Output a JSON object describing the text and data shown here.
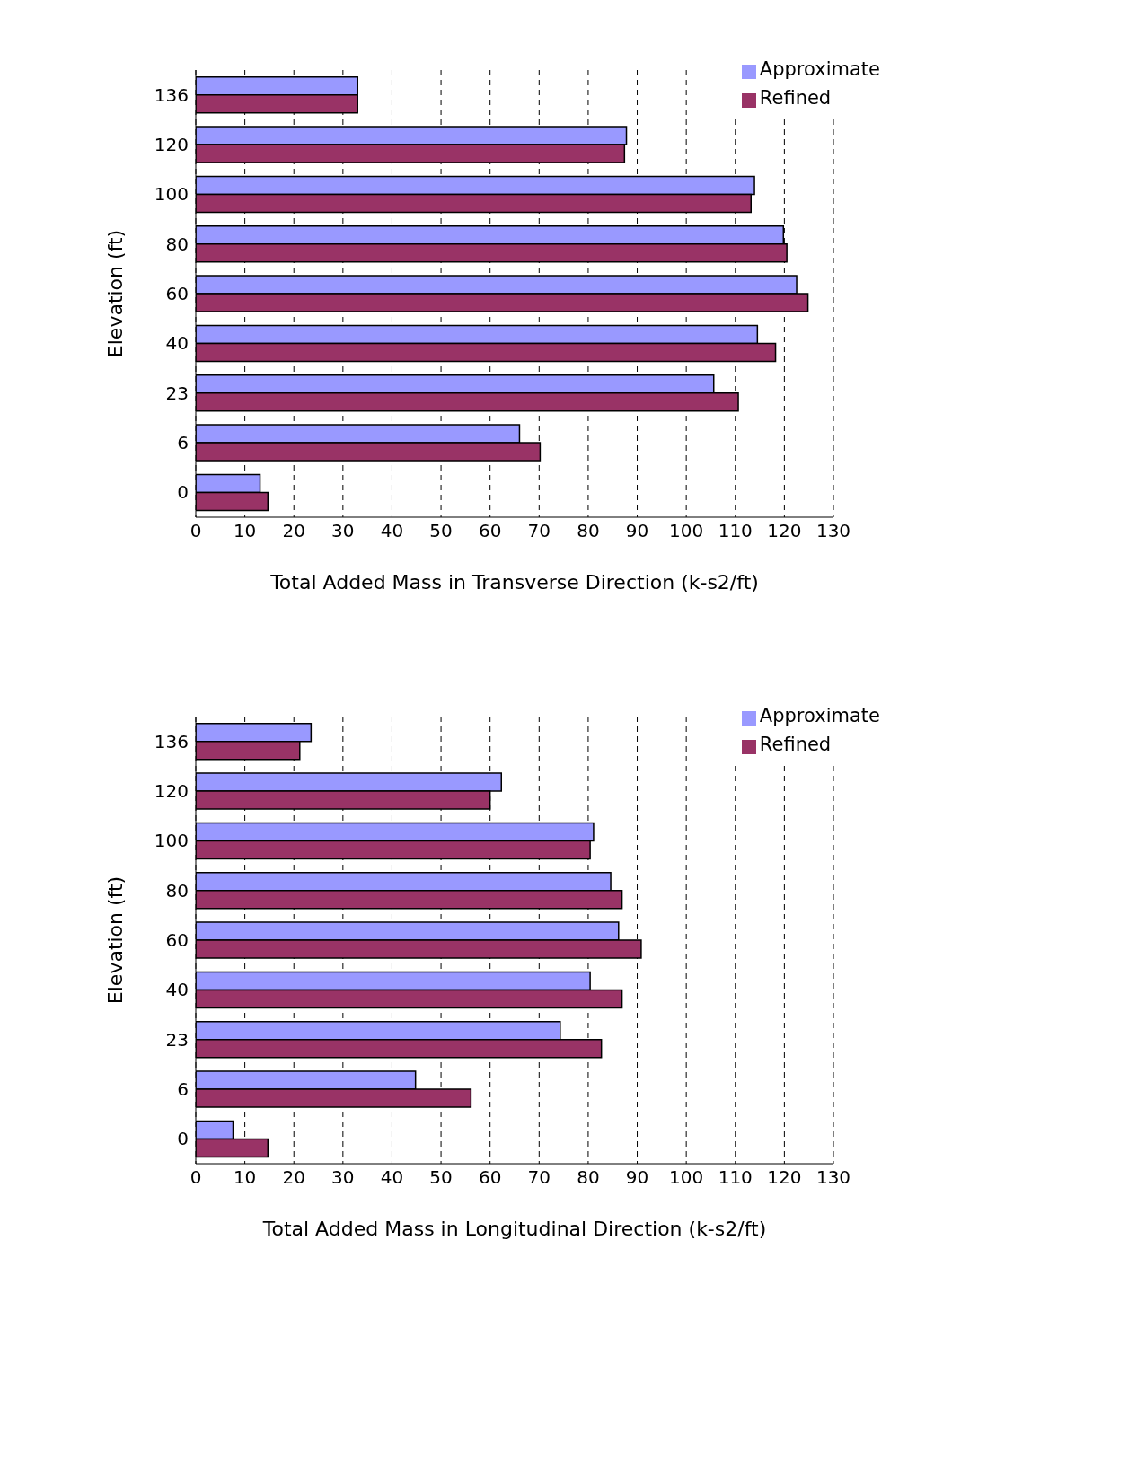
{
  "chart_data": [
    {
      "type": "bar",
      "orientation": "horizontal",
      "categories": [
        "136",
        "120",
        "100",
        "80",
        "60",
        "40",
        "23",
        "6",
        "0"
      ],
      "xlabel": "Total Added Mass in Transverse Direction (k-s2/ft)",
      "ylabel": "Elevation (ft)",
      "xlim": [
        0,
        130
      ],
      "xticks": [
        0,
        10,
        20,
        30,
        40,
        50,
        60,
        70,
        80,
        90,
        100,
        110,
        120,
        130
      ],
      "grid": "x",
      "legend": "top right",
      "series": [
        {
          "name": "Approximate",
          "color": "#9999ff",
          "values": [
            33,
            87.8,
            113.9,
            119.8,
            122.5,
            114.5,
            105.6,
            66,
            13.1
          ]
        },
        {
          "name": "Refined",
          "color": "#993366",
          "values": [
            33,
            87.4,
            113.2,
            120.5,
            124.8,
            118.2,
            110.6,
            70.2,
            14.7
          ]
        }
      ]
    },
    {
      "type": "bar",
      "orientation": "horizontal",
      "categories": [
        "136",
        "120",
        "100",
        "80",
        "60",
        "40",
        "23",
        "6",
        "0"
      ],
      "xlabel": "Total Added Mass in Longitudinal Direction (k-s2/ft)",
      "ylabel": "Elevation (ft)",
      "xlim": [
        0,
        130
      ],
      "xticks": [
        0,
        10,
        20,
        30,
        40,
        50,
        60,
        70,
        80,
        90,
        100,
        110,
        120,
        130
      ],
      "grid": "x",
      "legend": "top right",
      "series": [
        {
          "name": "Approximate",
          "color": "#9999ff",
          "values": [
            23.5,
            62.3,
            81.1,
            84.6,
            86.2,
            80.4,
            74.3,
            44.8,
            7.6
          ]
        },
        {
          "name": "Refined",
          "color": "#993366",
          "values": [
            21.2,
            60,
            80.4,
            86.9,
            90.8,
            86.9,
            82.7,
            56.1,
            14.7
          ]
        }
      ]
    }
  ]
}
